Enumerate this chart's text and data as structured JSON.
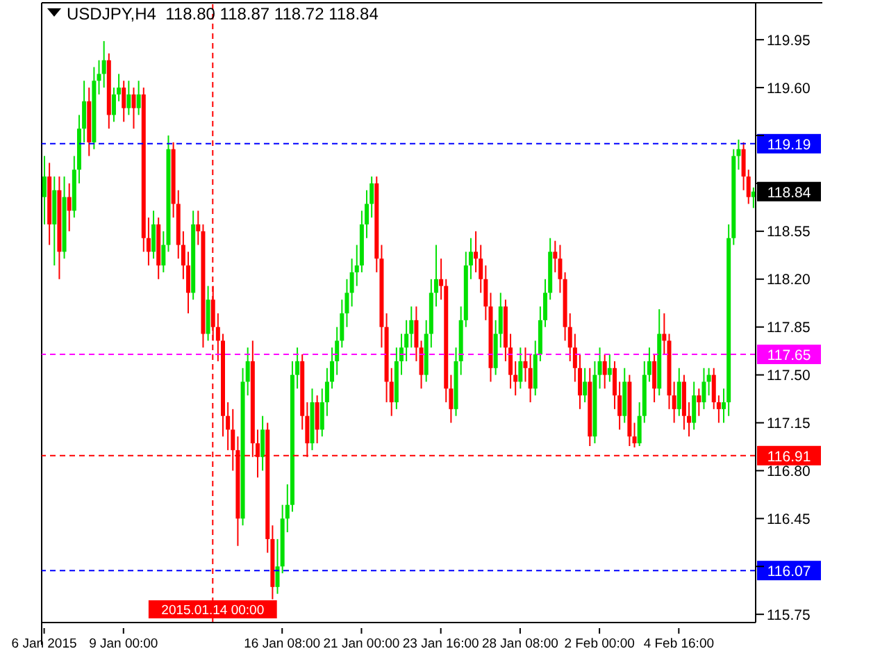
{
  "chart_data": {
    "type": "candlestick",
    "title": "USDJPY,H4  118.80 118.87 118.72 118.84",
    "categories": [
      "6 Jan 2015",
      null,
      null,
      null,
      null,
      null,
      null,
      null,
      null,
      null,
      null,
      null,
      null,
      null,
      null,
      null,
      "9 Jan 00:00",
      null,
      null,
      null,
      null,
      null,
      null,
      null,
      null,
      null,
      null,
      null,
      null,
      null,
      null,
      null,
      null,
      null,
      "2015.01.14 00:00",
      null,
      null,
      null,
      null,
      null,
      null,
      null,
      null,
      null,
      null,
      null,
      null,
      null,
      "16 Jan 08:00",
      null,
      null,
      null,
      null,
      null,
      null,
      null,
      null,
      null,
      null,
      null,
      null,
      null,
      null,
      null,
      "21 Jan 00:00",
      null,
      null,
      null,
      null,
      null,
      null,
      null,
      null,
      null,
      null,
      null,
      null,
      null,
      null,
      null,
      "23 Jan 16:00",
      null,
      null,
      null,
      null,
      null,
      null,
      null,
      null,
      null,
      null,
      null,
      null,
      null,
      null,
      null,
      "28 Jan 08:00",
      null,
      null,
      null,
      null,
      null,
      null,
      null,
      null,
      null,
      null,
      null,
      null,
      null,
      null,
      null,
      "2 Feb 00:00",
      null,
      null,
      null,
      null,
      null,
      null,
      null,
      null,
      null,
      null,
      null,
      null,
      null,
      null,
      null,
      "4 Feb 16:00",
      null,
      null,
      null,
      null,
      null,
      null,
      null,
      null,
      null,
      null,
      null,
      null,
      null,
      null,
      null
    ],
    "ohlc": [
      [
        118.8,
        119.1,
        118.6,
        118.95
      ],
      [
        118.95,
        119.05,
        118.45,
        118.6
      ],
      [
        118.6,
        118.95,
        118.3,
        118.85
      ],
      [
        118.85,
        118.95,
        118.2,
        118.4
      ],
      [
        118.4,
        118.95,
        118.35,
        118.8
      ],
      [
        118.8,
        118.9,
        118.55,
        118.7
      ],
      [
        118.7,
        119.1,
        118.65,
        119.0
      ],
      [
        119.0,
        119.4,
        118.9,
        119.3
      ],
      [
        119.3,
        119.65,
        119.2,
        119.5
      ],
      [
        119.5,
        119.6,
        119.1,
        119.2
      ],
      [
        119.2,
        119.75,
        119.15,
        119.65
      ],
      [
        119.65,
        119.8,
        119.55,
        119.7
      ],
      [
        119.7,
        119.94,
        119.6,
        119.8
      ],
      [
        119.8,
        119.85,
        119.3,
        119.4
      ],
      [
        119.4,
        119.6,
        119.35,
        119.55
      ],
      [
        119.55,
        119.7,
        119.5,
        119.6
      ],
      [
        119.6,
        119.65,
        119.35,
        119.45
      ],
      [
        119.45,
        119.65,
        119.4,
        119.55
      ],
      [
        119.55,
        119.6,
        119.3,
        119.45
      ],
      [
        119.45,
        119.65,
        119.4,
        119.55
      ],
      [
        119.55,
        119.6,
        118.4,
        118.5
      ],
      [
        118.5,
        118.65,
        118.3,
        118.4
      ],
      [
        118.4,
        118.7,
        118.35,
        118.6
      ],
      [
        118.6,
        118.65,
        118.2,
        118.3
      ],
      [
        118.3,
        118.55,
        118.25,
        118.45
      ],
      [
        118.45,
        119.25,
        118.4,
        119.15
      ],
      [
        119.15,
        119.2,
        118.65,
        118.75
      ],
      [
        118.75,
        118.85,
        118.35,
        118.45
      ],
      [
        118.45,
        118.55,
        118.2,
        118.3
      ],
      [
        118.3,
        118.4,
        117.95,
        118.1
      ],
      [
        118.1,
        118.7,
        118.05,
        118.6
      ],
      [
        118.6,
        118.7,
        118.45,
        118.55
      ],
      [
        118.55,
        118.6,
        117.7,
        117.8
      ],
      [
        117.8,
        118.15,
        117.75,
        118.05
      ],
      [
        118.05,
        118.15,
        117.75,
        117.85
      ],
      [
        117.85,
        117.95,
        117.6,
        117.75
      ],
      [
        117.75,
        117.8,
        117.05,
        117.2
      ],
      [
        117.2,
        117.3,
        116.95,
        117.1
      ],
      [
        117.1,
        117.25,
        116.8,
        116.95
      ],
      [
        116.95,
        117.05,
        116.25,
        116.45
      ],
      [
        116.45,
        117.55,
        116.4,
        117.45
      ],
      [
        117.45,
        117.7,
        117.35,
        117.6
      ],
      [
        117.6,
        117.75,
        116.9,
        117.0
      ],
      [
        117.0,
        117.1,
        116.75,
        116.9
      ],
      [
        116.9,
        117.2,
        116.8,
        117.1
      ],
      [
        117.1,
        117.15,
        116.2,
        116.3
      ],
      [
        116.3,
        116.4,
        115.86,
        115.95
      ],
      [
        115.95,
        116.3,
        115.9,
        116.1
      ],
      [
        116.1,
        116.55,
        116.05,
        116.45
      ],
      [
        116.45,
        116.7,
        116.35,
        116.55
      ],
      [
        116.55,
        117.6,
        116.5,
        117.5
      ],
      [
        117.5,
        117.7,
        117.4,
        117.6
      ],
      [
        117.6,
        117.65,
        117.1,
        117.2
      ],
      [
        117.2,
        117.3,
        116.9,
        117.0
      ],
      [
        117.0,
        117.4,
        116.95,
        117.3
      ],
      [
        117.3,
        117.35,
        117.0,
        117.1
      ],
      [
        117.1,
        117.4,
        117.05,
        117.3
      ],
      [
        117.3,
        117.55,
        117.2,
        117.45
      ],
      [
        117.45,
        117.7,
        117.4,
        117.6
      ],
      [
        117.6,
        117.85,
        117.5,
        117.75
      ],
      [
        117.75,
        118.05,
        117.7,
        117.95
      ],
      [
        117.95,
        118.2,
        117.85,
        118.1
      ],
      [
        118.1,
        118.35,
        118.0,
        118.25
      ],
      [
        118.25,
        118.45,
        118.15,
        118.3
      ],
      [
        118.3,
        118.7,
        118.25,
        118.6
      ],
      [
        118.6,
        118.85,
        118.5,
        118.75
      ],
      [
        118.75,
        118.95,
        118.65,
        118.9
      ],
      [
        118.9,
        118.95,
        118.25,
        118.35
      ],
      [
        118.35,
        118.45,
        117.7,
        117.85
      ],
      [
        117.85,
        117.95,
        117.3,
        117.45
      ],
      [
        117.45,
        117.55,
        117.2,
        117.3
      ],
      [
        117.3,
        117.7,
        117.25,
        117.6
      ],
      [
        117.6,
        117.8,
        117.5,
        117.7
      ],
      [
        117.7,
        117.9,
        117.6,
        117.8
      ],
      [
        117.8,
        118.0,
        117.7,
        117.9
      ],
      [
        117.9,
        118.0,
        117.6,
        117.7
      ],
      [
        117.7,
        117.75,
        117.4,
        117.5
      ],
      [
        117.5,
        117.9,
        117.45,
        117.8
      ],
      [
        117.8,
        118.2,
        117.7,
        118.1
      ],
      [
        118.1,
        118.45,
        118.0,
        118.2
      ],
      [
        118.2,
        118.35,
        118.05,
        118.15
      ],
      [
        118.15,
        118.2,
        117.3,
        117.4
      ],
      [
        117.4,
        117.5,
        117.15,
        117.25
      ],
      [
        117.25,
        117.7,
        117.2,
        117.6
      ],
      [
        117.6,
        118.0,
        117.5,
        117.9
      ],
      [
        117.9,
        118.4,
        117.85,
        118.3
      ],
      [
        118.3,
        118.5,
        118.2,
        118.4
      ],
      [
        118.4,
        118.55,
        118.25,
        118.35
      ],
      [
        118.35,
        118.45,
        118.1,
        118.2
      ],
      [
        118.2,
        118.3,
        117.9,
        118.0
      ],
      [
        118.0,
        118.1,
        117.45,
        117.55
      ],
      [
        117.55,
        117.9,
        117.5,
        117.8
      ],
      [
        117.8,
        118.1,
        117.7,
        118.0
      ],
      [
        118.0,
        118.05,
        117.6,
        117.7
      ],
      [
        117.7,
        117.8,
        117.4,
        117.5
      ],
      [
        117.5,
        117.6,
        117.35,
        117.45
      ],
      [
        117.45,
        117.7,
        117.4,
        117.6
      ],
      [
        117.6,
        117.7,
        117.45,
        117.55
      ],
      [
        117.55,
        117.65,
        117.3,
        117.4
      ],
      [
        117.4,
        117.75,
        117.35,
        117.65
      ],
      [
        117.65,
        118.0,
        117.6,
        117.9
      ],
      [
        117.9,
        118.2,
        117.85,
        118.1
      ],
      [
        118.1,
        118.5,
        118.05,
        118.4
      ],
      [
        118.4,
        118.48,
        118.25,
        118.35
      ],
      [
        118.35,
        118.45,
        118.1,
        118.2
      ],
      [
        118.2,
        118.25,
        117.75,
        117.85
      ],
      [
        117.85,
        117.95,
        117.6,
        117.7
      ],
      [
        117.7,
        117.8,
        117.45,
        117.55
      ],
      [
        117.55,
        117.65,
        117.25,
        117.35
      ],
      [
        117.35,
        117.55,
        117.3,
        117.45
      ],
      [
        117.45,
        117.55,
        116.98,
        117.05
      ],
      [
        117.05,
        117.6,
        117.0,
        117.5
      ],
      [
        117.5,
        117.7,
        117.4,
        117.6
      ],
      [
        117.6,
        117.65,
        117.4,
        117.5
      ],
      [
        117.5,
        117.65,
        117.45,
        117.55
      ],
      [
        117.55,
        117.6,
        117.25,
        117.35
      ],
      [
        117.35,
        117.45,
        117.1,
        117.2
      ],
      [
        117.2,
        117.55,
        117.15,
        117.45
      ],
      [
        117.45,
        117.5,
        116.98,
        117.05
      ],
      [
        117.05,
        117.15,
        116.97,
        117.0
      ],
      [
        117.0,
        117.3,
        116.98,
        117.2
      ],
      [
        117.2,
        117.6,
        117.15,
        117.5
      ],
      [
        117.5,
        117.7,
        117.45,
        117.6
      ],
      [
        117.6,
        117.65,
        117.3,
        117.4
      ],
      [
        117.4,
        117.98,
        117.35,
        117.8
      ],
      [
        117.8,
        117.95,
        117.65,
        117.75
      ],
      [
        117.75,
        117.8,
        117.25,
        117.35
      ],
      [
        117.35,
        117.45,
        117.15,
        117.25
      ],
      [
        117.25,
        117.55,
        117.2,
        117.45
      ],
      [
        117.45,
        117.5,
        117.1,
        117.2
      ],
      [
        117.2,
        117.3,
        117.05,
        117.15
      ],
      [
        117.15,
        117.45,
        117.1,
        117.35
      ],
      [
        117.35,
        117.4,
        117.2,
        117.3
      ],
      [
        117.3,
        117.55,
        117.25,
        117.45
      ],
      [
        117.45,
        117.55,
        117.35,
        117.5
      ],
      [
        117.5,
        117.55,
        117.25,
        117.3
      ],
      [
        117.3,
        117.35,
        117.15,
        117.25
      ],
      [
        117.25,
        117.4,
        117.15,
        117.3
      ],
      [
        117.3,
        118.6,
        117.2,
        118.5
      ],
      [
        118.5,
        119.15,
        118.45,
        119.1
      ],
      [
        119.1,
        119.22,
        119.0,
        119.15
      ],
      [
        119.15,
        119.2,
        118.85,
        118.95
      ],
      [
        118.95,
        119.0,
        118.75,
        118.8
      ],
      [
        118.8,
        118.87,
        118.72,
        118.84
      ]
    ],
    "colors": [
      "#00e000",
      "#ff0000",
      "#00e000",
      "#ff0000",
      "#00e000",
      "#ff0000",
      "#00e000",
      "#00e000",
      "#00e000",
      "#ff0000",
      "#00e000",
      "#00e000",
      "#00e000",
      "#ff0000",
      "#00e000",
      "#00e000",
      "#ff0000",
      "#00e000",
      "#ff0000",
      "#00e000",
      "#ff0000",
      "#ff0000",
      "#00e000",
      "#ff0000",
      "#00e000",
      "#00e000",
      "#ff0000",
      "#ff0000",
      "#ff0000",
      "#ff0000",
      "#00e000",
      "#ff0000",
      "#ff0000",
      "#00e000",
      "#ff0000",
      "#ff0000",
      "#ff0000",
      "#ff0000",
      "#ff0000",
      "#ff0000",
      "#00e000",
      "#00e000",
      "#ff0000",
      "#ff0000",
      "#00e000",
      "#ff0000",
      "#ff0000",
      "#00e000",
      "#00e000",
      "#00e000",
      "#00e000",
      "#00e000",
      "#ff0000",
      "#ff0000",
      "#00e000",
      "#ff0000",
      "#00e000",
      "#00e000",
      "#00e000",
      "#00e000",
      "#00e000",
      "#00e000",
      "#00e000",
      "#00e000",
      "#00e000",
      "#00e000",
      "#00e000",
      "#ff0000",
      "#ff0000",
      "#ff0000",
      "#ff0000",
      "#00e000",
      "#00e000",
      "#00e000",
      "#00e000",
      "#ff0000",
      "#ff0000",
      "#00e000",
      "#00e000",
      "#00e000",
      "#ff0000",
      "#ff0000",
      "#ff0000",
      "#00e000",
      "#00e000",
      "#00e000",
      "#00e000",
      "#ff0000",
      "#ff0000",
      "#ff0000",
      "#ff0000",
      "#00e000",
      "#00e000",
      "#ff0000",
      "#ff0000",
      "#ff0000",
      "#00e000",
      "#ff0000",
      "#ff0000",
      "#00e000",
      "#00e000",
      "#00e000",
      "#00e000",
      "#ff0000",
      "#ff0000",
      "#ff0000",
      "#ff0000",
      "#ff0000",
      "#ff0000",
      "#00e000",
      "#ff0000",
      "#00e000",
      "#00e000",
      "#ff0000",
      "#00e000",
      "#ff0000",
      "#ff0000",
      "#00e000",
      "#ff0000",
      "#ff0000",
      "#00e000",
      "#00e000",
      "#00e000",
      "#ff0000",
      "#00e000",
      "#ff0000",
      "#ff0000",
      "#ff0000",
      "#00e000",
      "#ff0000",
      "#ff0000",
      "#00e000",
      "#ff0000",
      "#00e000",
      "#00e000",
      "#ff0000",
      "#ff0000",
      "#00e000",
      "#00e000",
      "#00e000",
      "#00e000",
      "#ff0000",
      "#ff0000",
      "#00e000"
    ],
    "ylim": [
      115.69,
      120.22
    ],
    "yticks": [
      115.75,
      {
        "value": 116.1,
        "label": null
      },
      116.45,
      {
        "value": 116.8,
        "label": "116.80"
      },
      117.15,
      {
        "value": 117.5,
        "label": "117.50"
      },
      117.85,
      {
        "value": 118.2,
        "label": "118.20"
      },
      118.55,
      {
        "value": 118.9,
        "label": null
      },
      {
        "value": 119.25,
        "label": null
      },
      {
        "value": 119.6,
        "label": "119.60"
      },
      119.95
    ],
    "ref_lines": [
      {
        "axis": "y",
        "value": 119.19,
        "label": "119.19",
        "color": "#0000ff",
        "line_style": "dashed"
      },
      {
        "axis": "y",
        "value": 117.65,
        "label": "117.65",
        "color": "#ff00ff",
        "line_style": "dashed"
      },
      {
        "axis": "y",
        "value": 116.91,
        "label": "116.91",
        "color": "#ff0000",
        "line_style": "dashed"
      },
      {
        "axis": "y",
        "value": 116.07,
        "label": "116.07",
        "color": "#0000ff",
        "line_style": "dashed"
      },
      {
        "axis": "x",
        "value": "2015.01.14 00:00",
        "color": "#ff0000",
        "line_style": "dashed"
      }
    ],
    "annotations": [
      "118.84"
    ]
  }
}
